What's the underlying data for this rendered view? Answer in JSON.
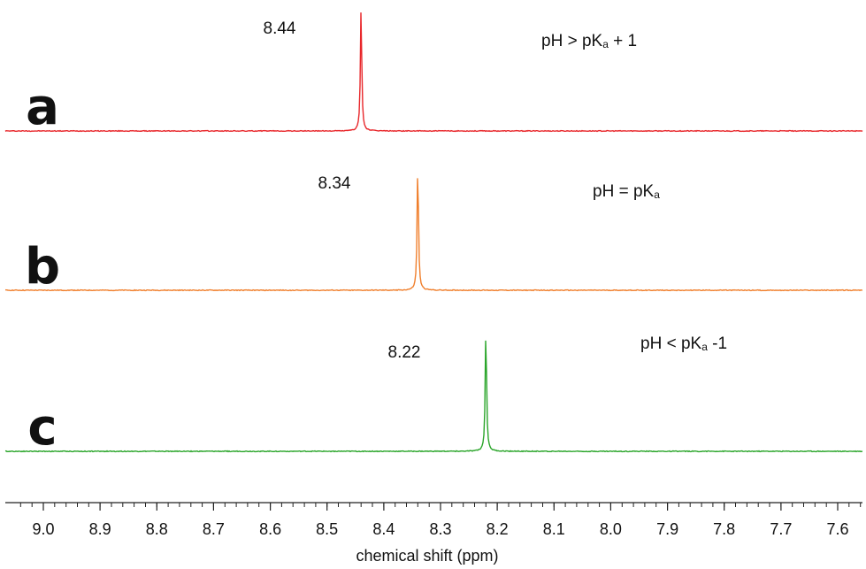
{
  "chart_data": {
    "type": "line",
    "xlabel": "chemical shift (ppm)",
    "xlim": [
      9.05,
      7.55
    ],
    "x_reversed": true,
    "x_ticks": [
      "9.0",
      "8.9",
      "8.8",
      "8.7",
      "8.6",
      "8.5",
      "8.4",
      "8.3",
      "8.2",
      "8.1",
      "8.0",
      "7.9",
      "7.8",
      "7.7",
      "7.6"
    ],
    "grid": false,
    "legend": "none",
    "series": [
      {
        "panel": "a",
        "color": "#e8262a",
        "peak_ppm": 8.44,
        "peak_label": "8.44",
        "condition": {
          "main": "pH > pK",
          "sub": "a",
          "suffix": " + 1"
        }
      },
      {
        "panel": "b",
        "color": "#f07f2c",
        "peak_ppm": 8.34,
        "peak_label": "8.34",
        "condition": {
          "main": "pH =  pK",
          "sub": "a",
          "suffix": ""
        }
      },
      {
        "panel": "c",
        "color": "#2aa52a",
        "peak_ppm": 8.22,
        "peak_label": "8.22",
        "condition": {
          "main": "pH < pK",
          "sub": "a",
          "suffix": " -1"
        }
      }
    ]
  }
}
